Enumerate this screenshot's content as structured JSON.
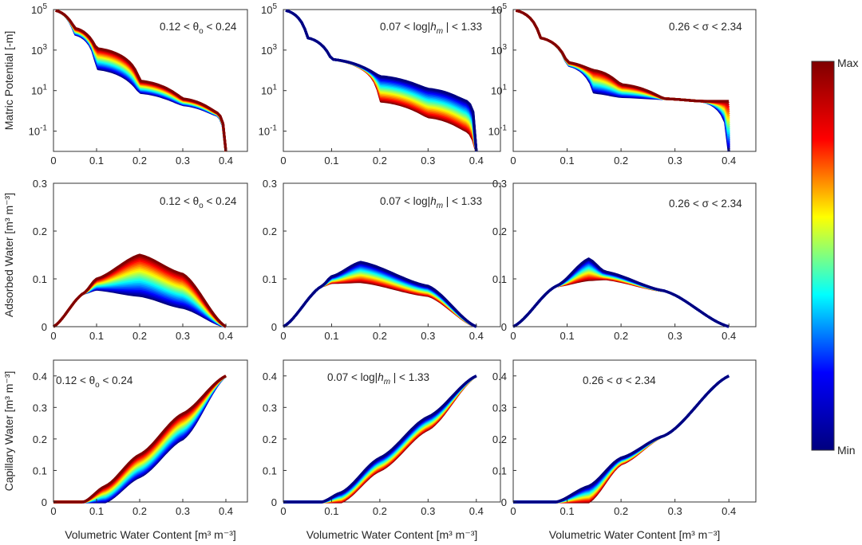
{
  "figure": {
    "xlabel": "Volumetric Water Content [m³ m⁻³]",
    "row_ylabels": [
      "Matric Potential [-m]",
      "Adsorbed Water [m³ m⁻³]",
      "Capillary Water [m³ m⁻³]"
    ],
    "column_annotations": [
      [
        "0.12 < θ",
        "o",
        " < 0.24"
      ],
      [
        "0.07 < log|",
        "h",
        "m",
        " | < 1.33"
      ],
      [
        "0.26 < σ < 2.34"
      ]
    ],
    "colorbar": {
      "max_label": "Max",
      "min_label": "Min",
      "colormap": "jet",
      "stops": [
        "#00007f",
        "#0000ff",
        "#00ffff",
        "#ffff00",
        "#ff0000",
        "#7f0000"
      ]
    }
  },
  "chart_data": [
    {
      "panel": "row1-col1",
      "type": "line",
      "scale_y": "log",
      "ylabel": "Matric Potential [-m]",
      "xlim": [
        0,
        0.45
      ],
      "ylim": [
        0.01,
        100000
      ],
      "xticks": [
        "0",
        "0.1",
        "0.2",
        "0.3",
        "0.4"
      ],
      "yticks": [
        "10-1",
        "101",
        "103",
        "105"
      ],
      "parameter_range": [
        0.12,
        0.24
      ],
      "series": [
        {
          "x": [
            0.005,
            0.05,
            0.1,
            0.2,
            0.3,
            0.38,
            0.4
          ],
          "y_min": [
            90000,
            6000,
            120,
            8,
            2,
            0.6,
            0.01
          ],
          "y_max": [
            90000,
            12000,
            1200,
            30,
            4,
            0.8,
            0.01
          ]
        }
      ]
    },
    {
      "panel": "row1-col2",
      "type": "line",
      "scale_y": "log",
      "ylabel": "",
      "xlim": [
        0,
        0.45
      ],
      "ylim": [
        0.01,
        100000
      ],
      "xticks": [
        "0",
        "0.1",
        "0.2",
        "0.3",
        "0.4"
      ],
      "yticks": [
        "10-1",
        "101",
        "103",
        "105"
      ],
      "parameter_range": [
        0.07,
        1.33
      ],
      "series": [
        {
          "x": [
            0.005,
            0.05,
            0.1,
            0.2,
            0.3,
            0.38,
            0.4
          ],
          "y_min": [
            90000,
            4000,
            350,
            3,
            0.5,
            0.1,
            0.01
          ],
          "y_max": [
            90000,
            4000,
            350,
            50,
            12,
            3,
            0.01
          ]
        }
      ]
    },
    {
      "panel": "row1-col3",
      "type": "line",
      "scale_y": "log",
      "ylabel": "",
      "xlim": [
        0,
        0.45
      ],
      "ylim": [
        0.01,
        100000
      ],
      "xticks": [
        "0",
        "0.1",
        "0.2",
        "0.3",
        "0.4"
      ],
      "yticks": [
        "10-1",
        "101",
        "103",
        "105"
      ],
      "parameter_range": [
        0.26,
        2.34
      ],
      "series": [
        {
          "x": [
            0.005,
            0.05,
            0.1,
            0.15,
            0.2,
            0.28,
            0.35,
            0.4
          ],
          "y_min": [
            90000,
            4000,
            180,
            8,
            5,
            4,
            3,
            0.01
          ],
          "y_max": [
            90000,
            4000,
            250,
            100,
            20,
            4,
            3,
            3
          ]
        }
      ]
    },
    {
      "panel": "row2-col1",
      "type": "area",
      "ylabel": "Adsorbed Water [m³ m⁻³]",
      "xlim": [
        0,
        0.45
      ],
      "ylim": [
        0,
        0.3
      ],
      "xticks": [
        "0",
        "0.1",
        "0.2",
        "0.3",
        "0.4"
      ],
      "yticks": [
        "0",
        "0.1",
        "0.2",
        "0.3"
      ],
      "parameter_range": [
        0.12,
        0.24
      ],
      "series": [
        {
          "x": [
            0,
            0.07,
            0.1,
            0.2,
            0.3,
            0.4
          ],
          "y_min": [
            0,
            0.07,
            0.078,
            0.065,
            0.04,
            0
          ],
          "y_max": [
            0,
            0.07,
            0.1,
            0.15,
            0.11,
            0
          ]
        }
      ]
    },
    {
      "panel": "row2-col2",
      "type": "area",
      "ylabel": "",
      "xlim": [
        0,
        0.45
      ],
      "ylim": [
        0,
        0.3
      ],
      "xticks": [
        "0",
        "0.1",
        "0.2",
        "0.3",
        "0.4"
      ],
      "yticks": [
        "0",
        "0.1",
        "0.2",
        "0.3"
      ],
      "parameter_range": [
        0.07,
        1.33
      ],
      "series": [
        {
          "x": [
            0,
            0.08,
            0.1,
            0.16,
            0.3,
            0.4
          ],
          "y_min": [
            0,
            0.085,
            0.092,
            0.094,
            0.065,
            0
          ],
          "y_max": [
            0,
            0.085,
            0.105,
            0.135,
            0.085,
            0
          ]
        }
      ]
    },
    {
      "panel": "row2-col3",
      "type": "area",
      "ylabel": "",
      "xlim": [
        0,
        0.45
      ],
      "ylim": [
        0,
        0.3
      ],
      "xticks": [
        "0",
        "0.1",
        "0.2",
        "0.3",
        "0.4"
      ],
      "yticks": [
        "0",
        "0.1",
        "0.2",
        "0.3"
      ],
      "parameter_range": [
        0.26,
        2.34
      ],
      "series": [
        {
          "x": [
            0,
            0.08,
            0.14,
            0.17,
            0.28,
            0.4
          ],
          "y_min": [
            0,
            0.085,
            0.098,
            0.1,
            0.075,
            0
          ],
          "y_max": [
            0,
            0.085,
            0.142,
            0.115,
            0.075,
            0
          ]
        }
      ]
    },
    {
      "panel": "row3-col1",
      "type": "area",
      "ylabel": "Capillary Water [m³ m⁻³]",
      "xlim": [
        0,
        0.45
      ],
      "ylim": [
        0,
        0.45
      ],
      "xticks": [
        "0",
        "0.1",
        "0.2",
        "0.3",
        "0.4"
      ],
      "yticks": [
        "0",
        "0.1",
        "0.2",
        "0.3",
        "0.4"
      ],
      "parameter_range": [
        0.12,
        0.24
      ],
      "series": [
        {
          "x": [
            0,
            0.07,
            0.12,
            0.2,
            0.3,
            0.4
          ],
          "y_min": [
            0,
            0,
            0,
            0.08,
            0.2,
            0.4
          ],
          "y_max": [
            0,
            0,
            0.05,
            0.15,
            0.28,
            0.4
          ]
        }
      ]
    },
    {
      "panel": "row3-col2",
      "type": "area",
      "ylabel": "",
      "xlim": [
        0,
        0.45
      ],
      "ylim": [
        0,
        0.45
      ],
      "xticks": [
        "0",
        "0.1",
        "0.2",
        "0.3",
        "0.4"
      ],
      "yticks": [
        "0",
        "0.1",
        "0.2",
        "0.3",
        "0.4"
      ],
      "parameter_range": [
        0.07,
        1.33
      ],
      "series": [
        {
          "x": [
            0,
            0.08,
            0.12,
            0.2,
            0.3,
            0.4
          ],
          "y_min": [
            0,
            0,
            0,
            0.1,
            0.23,
            0.4
          ],
          "y_max": [
            0,
            0,
            0.03,
            0.14,
            0.27,
            0.4
          ]
        }
      ]
    },
    {
      "panel": "row3-col3",
      "type": "area",
      "ylabel": "",
      "xlim": [
        0,
        0.45
      ],
      "ylim": [
        0,
        0.45
      ],
      "xticks": [
        "0",
        "0.1",
        "0.2",
        "0.3",
        "0.4"
      ],
      "yticks": [
        "0",
        "0.1",
        "0.2",
        "0.3",
        "0.4"
      ],
      "parameter_range": [
        0.26,
        2.34
      ],
      "series": [
        {
          "x": [
            0,
            0.08,
            0.14,
            0.2,
            0.28,
            0.4
          ],
          "y_min": [
            0,
            0,
            0,
            0.12,
            0.21,
            0.4
          ],
          "y_max": [
            0,
            0,
            0.05,
            0.14,
            0.21,
            0.4
          ]
        }
      ]
    }
  ]
}
